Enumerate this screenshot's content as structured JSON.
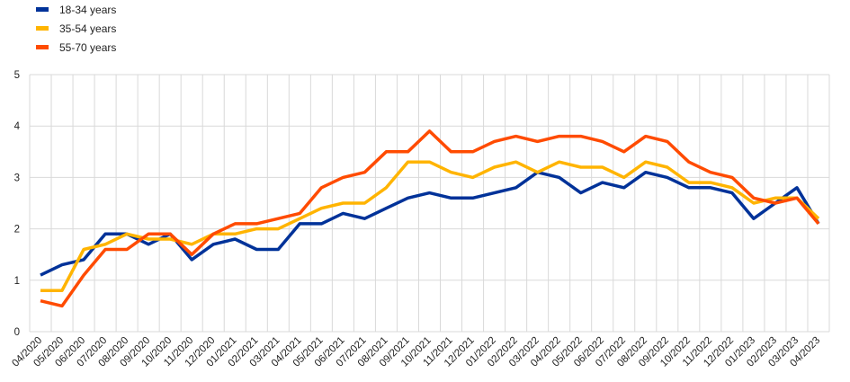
{
  "chart_data": {
    "type": "line",
    "title": "",
    "xlabel": "",
    "ylabel": "",
    "ylim": [
      0,
      5
    ],
    "yticks": [
      0,
      1,
      2,
      3,
      4,
      5
    ],
    "grid": true,
    "legend_position": "top-left",
    "categories": [
      "04/2020",
      "05/2020",
      "06/2020",
      "07/2020",
      "08/2020",
      "09/2020",
      "10/2020",
      "11/2020",
      "12/2020",
      "01/2021",
      "02/2021",
      "03/2021",
      "04/2021",
      "05/2021",
      "06/2021",
      "07/2021",
      "08/2021",
      "09/2021",
      "10/2021",
      "11/2021",
      "12/2021",
      "01/2022",
      "02/2022",
      "03/2022",
      "04/2022",
      "05/2022",
      "06/2022",
      "07/2022",
      "08/2022",
      "09/2022",
      "10/2022",
      "11/2022",
      "12/2022",
      "01/2023",
      "02/2023",
      "03/2023",
      "04/2023"
    ],
    "series": [
      {
        "name": "18-34 years",
        "color": "#003299",
        "values": [
          1.1,
          1.3,
          1.4,
          1.9,
          1.9,
          1.7,
          1.9,
          1.4,
          1.7,
          1.8,
          1.6,
          1.6,
          2.1,
          2.1,
          2.3,
          2.2,
          2.4,
          2.6,
          2.7,
          2.6,
          2.6,
          2.7,
          2.8,
          3.1,
          3.0,
          2.7,
          2.9,
          2.8,
          3.1,
          3.0,
          2.8,
          2.8,
          2.7,
          2.2,
          2.5,
          2.8,
          2.1
        ]
      },
      {
        "name": "35-54 years",
        "color": "#FFB400",
        "values": [
          0.8,
          0.8,
          1.6,
          1.7,
          1.9,
          1.8,
          1.8,
          1.7,
          1.9,
          1.9,
          2.0,
          2.0,
          2.2,
          2.4,
          2.5,
          2.5,
          2.8,
          3.3,
          3.3,
          3.1,
          3.0,
          3.2,
          3.3,
          3.1,
          3.3,
          3.2,
          3.2,
          3.0,
          3.3,
          3.2,
          2.9,
          2.9,
          2.8,
          2.5,
          2.6,
          2.6,
          2.2
        ]
      },
      {
        "name": "55-70 years",
        "color": "#FF4B00",
        "values": [
          0.6,
          0.5,
          1.1,
          1.6,
          1.6,
          1.9,
          1.9,
          1.5,
          1.9,
          2.1,
          2.1,
          2.2,
          2.3,
          2.8,
          3.0,
          3.1,
          3.5,
          3.5,
          3.9,
          3.5,
          3.5,
          3.7,
          3.8,
          3.7,
          3.8,
          3.8,
          3.7,
          3.5,
          3.8,
          3.7,
          3.3,
          3.1,
          3.0,
          2.6,
          2.5,
          2.6,
          2.1
        ]
      }
    ]
  }
}
